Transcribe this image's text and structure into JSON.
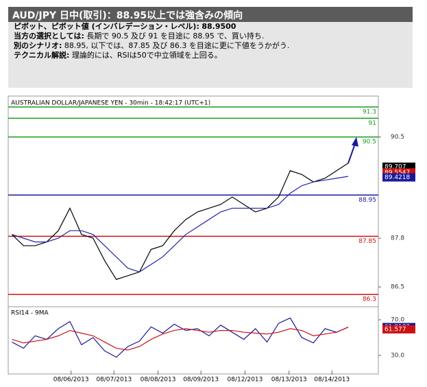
{
  "header": {
    "title": "AUD/JPY 日中(取引)：88.95以上では強含みの傾向",
    "lines": [
      {
        "label": "ピボット、ピボット値 (インバレデーション・レベル):",
        "text": "88.9500"
      },
      {
        "label": "当方の選択としては:",
        "text": "長期で 90.5 及び 91 を目途に 88.95 で、買い持ち."
      },
      {
        "label": "別のシナリオ:",
        "text": "88.95, 以下では、87.85 及び 86.3 を目途に更に下値をうかがう."
      },
      {
        "label": "テクニカル解説:",
        "text": "理論的には、RSIは50で中立領域を上回る。"
      }
    ]
  },
  "chart_data": [
    {
      "type": "line",
      "title": "AUSTRALIAN DOLLAR/JAPANESE YEN - 30min - 18:42:17 (UTC+1)",
      "x": [
        0,
        1,
        2,
        3,
        4,
        5,
        6,
        7,
        8,
        9,
        10,
        11,
        12,
        13,
        14,
        15,
        16,
        17,
        18,
        19,
        20,
        21,
        22,
        23,
        24,
        25,
        26,
        27,
        28,
        29
      ],
      "xlim": [
        -0.2,
        31.6
      ],
      "xticks": [
        {
          "value": 5.1,
          "label": "08/06/2013"
        },
        {
          "value": 8.8,
          "label": "08/07/2013"
        },
        {
          "value": 12.6,
          "label": "08/08/2013"
        },
        {
          "value": 16.3,
          "label": "08/09/2013"
        },
        {
          "value": 20.1,
          "label": "08/12/2013"
        },
        {
          "value": 23.9,
          "label": "08/13/2013"
        },
        {
          "value": 27.6,
          "label": "08/14/2013"
        }
      ],
      "ylim": [
        86.1,
        91.5
      ],
      "yticks": [
        86.5,
        87.8,
        90.5
      ],
      "series": [
        {
          "color": "#000000",
          "values": [
            87.9,
            87.6,
            87.6,
            87.7,
            88.0,
            88.6,
            87.9,
            87.8,
            87.2,
            86.7,
            86.8,
            86.9,
            87.5,
            87.6,
            88.0,
            88.3,
            88.5,
            88.6,
            88.7,
            88.9,
            88.7,
            88.5,
            88.6,
            88.9,
            89.6,
            89.5,
            89.3,
            89.4,
            89.6,
            89.8
          ]
        },
        {
          "color": "#2222aa",
          "values": [
            87.9,
            87.8,
            87.7,
            87.7,
            87.8,
            88.0,
            88.0,
            87.9,
            87.6,
            87.3,
            87.0,
            86.9,
            87.1,
            87.3,
            87.6,
            87.9,
            88.1,
            88.3,
            88.5,
            88.6,
            88.6,
            88.6,
            88.6,
            88.7,
            89.0,
            89.2,
            89.3,
            89.35,
            89.4,
            89.45
          ]
        }
      ],
      "levels": [
        {
          "value": 91.3,
          "color": "#1a9a1a"
        },
        {
          "value": 91,
          "color": "#1a9a1a"
        },
        {
          "value": 90.5,
          "color": "#1a9a1a"
        },
        {
          "value": 88.95,
          "color": "#1a1a99"
        },
        {
          "value": 87.85,
          "color": "#cc1111"
        },
        {
          "value": 86.3,
          "color": "#cc1111"
        }
      ],
      "last_values": [
        {
          "value": 89.707,
          "color": "#000000"
        },
        {
          "value": 89.5547,
          "color": "#cc1111"
        },
        {
          "value": 89.4218,
          "color": "#1a1a99"
        }
      ]
    },
    {
      "type": "line",
      "title": "RSI14 - 9MA",
      "x": [
        0,
        1,
        2,
        3,
        4,
        5,
        6,
        7,
        8,
        9,
        10,
        11,
        12,
        13,
        14,
        15,
        16,
        17,
        18,
        19,
        20,
        21,
        22,
        23,
        24,
        25,
        26,
        27,
        28,
        29
      ],
      "xlim": [
        -0.2,
        31.6
      ],
      "ylim": [
        13,
        80.8
      ],
      "yticks": [
        {
          "value": 30,
          "label": "30.0"
        },
        {
          "value": 70,
          "label": "70.0"
        }
      ],
      "series": [
        {
          "color": "#1a1a99",
          "values": [
            45,
            38,
            52,
            48,
            60,
            68,
            42,
            50,
            35,
            28,
            40,
            46,
            62,
            55,
            65,
            58,
            60,
            52,
            64,
            56,
            48,
            60,
            45,
            66,
            72,
            50,
            44,
            60,
            56,
            61.8183
          ]
        },
        {
          "color": "#cc1111",
          "values": [
            48,
            44,
            46,
            48,
            52,
            58,
            55,
            52,
            45,
            38,
            36,
            40,
            48,
            54,
            58,
            60,
            58,
            56,
            58,
            58,
            56,
            55,
            54,
            56,
            60,
            58,
            52,
            54,
            56,
            61.577
          ]
        }
      ],
      "last_values": [
        {
          "value": 61.8183,
          "color": "#1a1a99"
        },
        {
          "value": 61.577,
          "color": "#cc1111"
        }
      ]
    }
  ]
}
